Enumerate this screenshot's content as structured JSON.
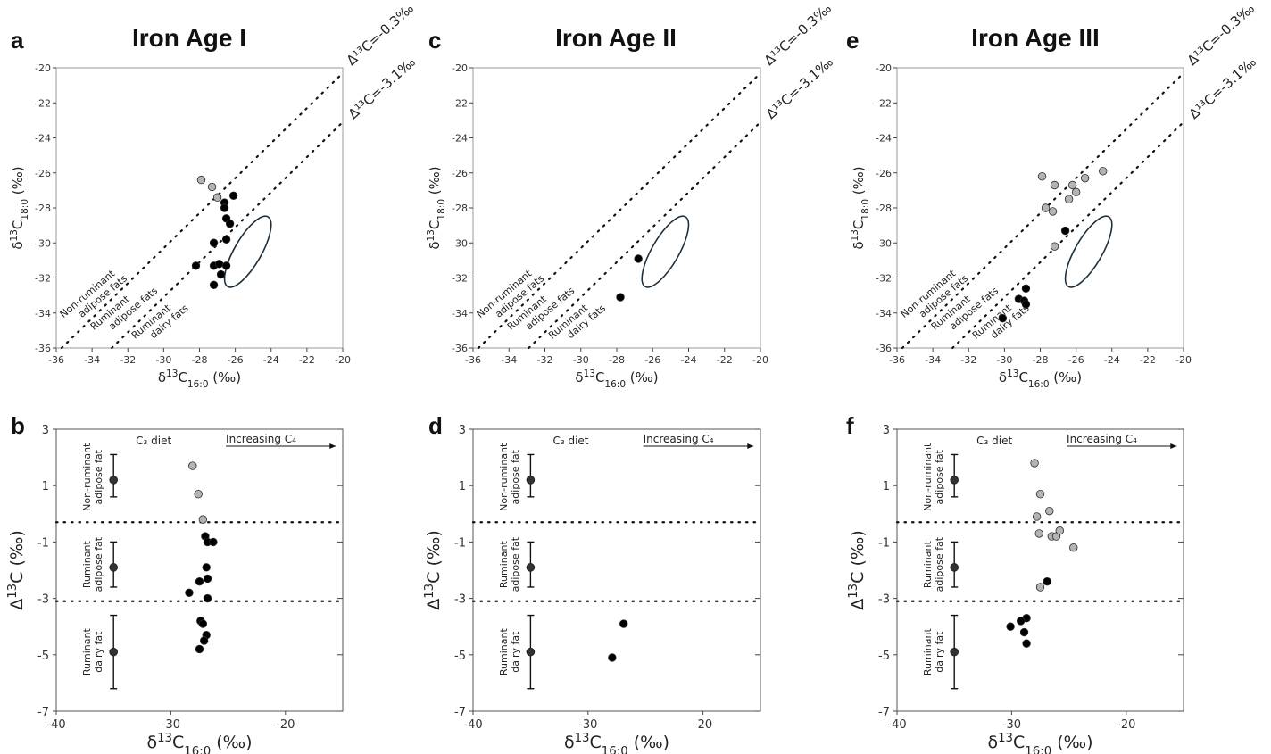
{
  "colors": {
    "ink": "#111111",
    "ellipse": "#1d2f3c",
    "filled": "#000000",
    "grey": "#b4b4b4",
    "grey_stroke": "#2b2b2b"
  },
  "legend_lines": {
    "upper": "Δ¹³C=-0.3‰",
    "lower": "Δ¹³C=-3.1‰"
  },
  "regions": {
    "nonruminant": [
      "Non-ruminant",
      "adipose fats"
    ],
    "ruminant_adipose": [
      "Ruminant",
      "adipose fats"
    ],
    "ruminant_dairy": [
      "Ruminant",
      "dairy fats"
    ]
  },
  "b_categories": {
    "nonruminant": [
      "Non-ruminant",
      "adipose fat"
    ],
    "ruminant_adipose": [
      "Ruminant",
      "adipose fat"
    ],
    "ruminant_dairy": [
      "Ruminant",
      "dairy fat"
    ]
  },
  "annotations": {
    "c3": "C₃ diet",
    "c4": "Increasing C₄"
  },
  "chart_data": [
    {
      "panel": "a",
      "type": "scatter",
      "title": "Iron Age I",
      "xlabel": "δ¹³C16:0 (‰)",
      "ylabel": "δ¹³C18:0 (‰)",
      "xlim": [
        -36,
        -20
      ],
      "ylim": [
        -36,
        -20
      ],
      "xticks": [
        -36,
        -34,
        -32,
        -30,
        -28,
        -26,
        -24,
        -22,
        -20
      ],
      "yticks": [
        -36,
        -34,
        -32,
        -30,
        -28,
        -26,
        -24,
        -22,
        -20
      ],
      "reference_lines": [
        {
          "label": "Δ¹³C=-0.3‰",
          "offset": -0.3
        },
        {
          "label": "Δ¹³C=-3.1‰",
          "offset": -3.1
        }
      ],
      "ellipse": {
        "cx": -25.3,
        "cy": -30.5,
        "rx": 0.75,
        "ry": 2.3,
        "tilt_deg": 30
      },
      "series": [
        {
          "fill": "grey",
          "points": [
            [
              -27.9,
              -26.4
            ],
            [
              -27.3,
              -26.8
            ],
            [
              -27.0,
              -27.4
            ]
          ]
        },
        {
          "fill": "black",
          "points": [
            [
              -26.1,
              -27.3
            ],
            [
              -26.6,
              -27.7
            ],
            [
              -26.6,
              -28.0
            ],
            [
              -26.5,
              -28.6
            ],
            [
              -26.3,
              -28.9
            ],
            [
              -27.2,
              -30.0
            ],
            [
              -26.5,
              -29.8
            ],
            [
              -28.2,
              -31.3
            ],
            [
              -27.2,
              -31.3
            ],
            [
              -26.9,
              -31.2
            ],
            [
              -26.5,
              -31.3
            ],
            [
              -26.8,
              -31.8
            ],
            [
              -27.2,
              -32.4
            ]
          ]
        }
      ]
    },
    {
      "panel": "b",
      "type": "scatter",
      "xlabel": "δ¹³C16:0 (‰)",
      "ylabel": "Δ¹³C (‰)",
      "xlim": [
        -40,
        -15
      ],
      "ylim": [
        -7,
        3
      ],
      "xticks": [
        -40,
        -30,
        -20
      ],
      "yticks": [
        -7,
        -5,
        -3,
        -1,
        1,
        3
      ],
      "dividers": [
        -0.3,
        -3.1
      ],
      "reference_ranges": [
        {
          "center": 1.2,
          "low": 0.6,
          "high": 2.1
        },
        {
          "center": -1.9,
          "low": -2.6,
          "high": -1.0
        },
        {
          "center": -4.9,
          "low": -6.2,
          "high": -3.6
        }
      ],
      "series": [
        {
          "fill": "grey",
          "points": [
            [
              -28.1,
              1.7
            ],
            [
              -27.6,
              0.7
            ],
            [
              -27.2,
              -0.2
            ]
          ]
        },
        {
          "fill": "black",
          "points": [
            [
              -27.0,
              -0.8
            ],
            [
              -26.8,
              -1.0
            ],
            [
              -26.3,
              -1.0
            ],
            [
              -26.9,
              -1.9
            ],
            [
              -27.5,
              -2.4
            ],
            [
              -26.8,
              -2.3
            ],
            [
              -28.4,
              -2.8
            ],
            [
              -26.8,
              -3.0
            ],
            [
              -27.4,
              -3.8
            ],
            [
              -27.2,
              -3.9
            ],
            [
              -26.9,
              -4.3
            ],
            [
              -27.1,
              -4.5
            ],
            [
              -27.5,
              -4.8
            ]
          ]
        }
      ]
    },
    {
      "panel": "c",
      "type": "scatter",
      "title": "Iron Age II",
      "xlabel": "δ¹³C16:0 (‰)",
      "ylabel": "δ¹³C18:0 (‰)",
      "xlim": [
        -36,
        -20
      ],
      "ylim": [
        -36,
        -20
      ],
      "xticks": [
        -36,
        -34,
        -32,
        -30,
        -28,
        -26,
        -24,
        -22,
        -20
      ],
      "yticks": [
        -36,
        -34,
        -32,
        -30,
        -28,
        -26,
        -24,
        -22,
        -20
      ],
      "reference_lines": [
        {
          "label": "Δ¹³C=-0.3‰",
          "offset": -0.3
        },
        {
          "label": "Δ¹³C=-3.1‰",
          "offset": -3.1
        }
      ],
      "ellipse": {
        "cx": -25.3,
        "cy": -30.5,
        "rx": 0.75,
        "ry": 2.3,
        "tilt_deg": 30
      },
      "series": [
        {
          "fill": "black",
          "points": [
            [
              -26.8,
              -30.9
            ],
            [
              -27.8,
              -33.1
            ]
          ]
        }
      ]
    },
    {
      "panel": "d",
      "type": "scatter",
      "xlabel": "δ¹³C16:0 (‰)",
      "ylabel": "Δ¹³C (‰)",
      "xlim": [
        -40,
        -15
      ],
      "ylim": [
        -7,
        3
      ],
      "xticks": [
        -40,
        -30,
        -20
      ],
      "yticks": [
        -7,
        -5,
        -3,
        -1,
        1,
        3
      ],
      "dividers": [
        -0.3,
        -3.1
      ],
      "reference_ranges": [
        {
          "center": 1.2,
          "low": 0.6,
          "high": 2.1
        },
        {
          "center": -1.9,
          "low": -2.6,
          "high": -1.0
        },
        {
          "center": -4.9,
          "low": -6.2,
          "high": -3.6
        }
      ],
      "series": [
        {
          "fill": "black",
          "points": [
            [
              -26.9,
              -3.9
            ],
            [
              -27.9,
              -5.1
            ]
          ]
        }
      ]
    },
    {
      "panel": "e",
      "type": "scatter",
      "title": "Iron Age III",
      "xlabel": "δ¹³C16:0 (‰)",
      "ylabel": "δ¹³C18:0 (‰)",
      "xlim": [
        -36,
        -20
      ],
      "ylim": [
        -36,
        -20
      ],
      "xticks": [
        -36,
        -34,
        -32,
        -30,
        -28,
        -26,
        -24,
        -22,
        -20
      ],
      "yticks": [
        -36,
        -34,
        -32,
        -30,
        -28,
        -26,
        -24,
        -22,
        -20
      ],
      "reference_lines": [
        {
          "label": "Δ¹³C=-0.3‰",
          "offset": -0.3
        },
        {
          "label": "Δ¹³C=-3.1‰",
          "offset": -3.1
        }
      ],
      "ellipse": {
        "cx": -25.3,
        "cy": -30.5,
        "rx": 0.75,
        "ry": 2.3,
        "tilt_deg": 30
      },
      "series": [
        {
          "fill": "grey",
          "points": [
            [
              -27.9,
              -26.2
            ],
            [
              -27.2,
              -26.7
            ],
            [
              -26.2,
              -26.7
            ],
            [
              -25.5,
              -26.3
            ],
            [
              -24.5,
              -25.9
            ],
            [
              -26.0,
              -27.1
            ],
            [
              -26.4,
              -27.5
            ],
            [
              -27.7,
              -28.0
            ],
            [
              -27.3,
              -28.2
            ],
            [
              -27.2,
              -30.2
            ]
          ]
        },
        {
          "fill": "black",
          "points": [
            [
              -26.6,
              -29.3
            ],
            [
              -28.8,
              -32.6
            ],
            [
              -29.2,
              -33.2
            ],
            [
              -28.9,
              -33.3
            ],
            [
              -28.8,
              -33.5
            ],
            [
              -30.1,
              -34.3
            ]
          ]
        }
      ]
    },
    {
      "panel": "f",
      "type": "scatter",
      "xlabel": "δ¹³C16:0 (‰)",
      "ylabel": "Δ¹³C (‰)",
      "xlim": [
        -40,
        -15
      ],
      "ylim": [
        -7,
        3
      ],
      "xticks": [
        -40,
        -30,
        -20
      ],
      "yticks": [
        -7,
        -5,
        -3,
        -1,
        1,
        3
      ],
      "dividers": [
        -0.3,
        -3.1
      ],
      "reference_ranges": [
        {
          "center": 1.2,
          "low": 0.6,
          "high": 2.1
        },
        {
          "center": -1.9,
          "low": -2.6,
          "high": -1.0
        },
        {
          "center": -4.9,
          "low": -6.2,
          "high": -3.6
        }
      ],
      "series": [
        {
          "fill": "grey",
          "points": [
            [
              -28.0,
              1.8
            ],
            [
              -27.5,
              0.7
            ],
            [
              -27.8,
              -0.1
            ],
            [
              -26.7,
              0.1
            ],
            [
              -27.6,
              -0.7
            ],
            [
              -26.5,
              -0.8
            ],
            [
              -26.1,
              -0.8
            ],
            [
              -25.8,
              -0.6
            ],
            [
              -24.6,
              -1.2
            ],
            [
              -27.5,
              -2.6
            ]
          ]
        },
        {
          "fill": "black",
          "points": [
            [
              -26.9,
              -2.4
            ],
            [
              -28.7,
              -3.7
            ],
            [
              -29.2,
              -3.8
            ],
            [
              -28.9,
              -4.2
            ],
            [
              -28.7,
              -4.6
            ],
            [
              -30.1,
              -4.0
            ]
          ]
        }
      ]
    }
  ]
}
